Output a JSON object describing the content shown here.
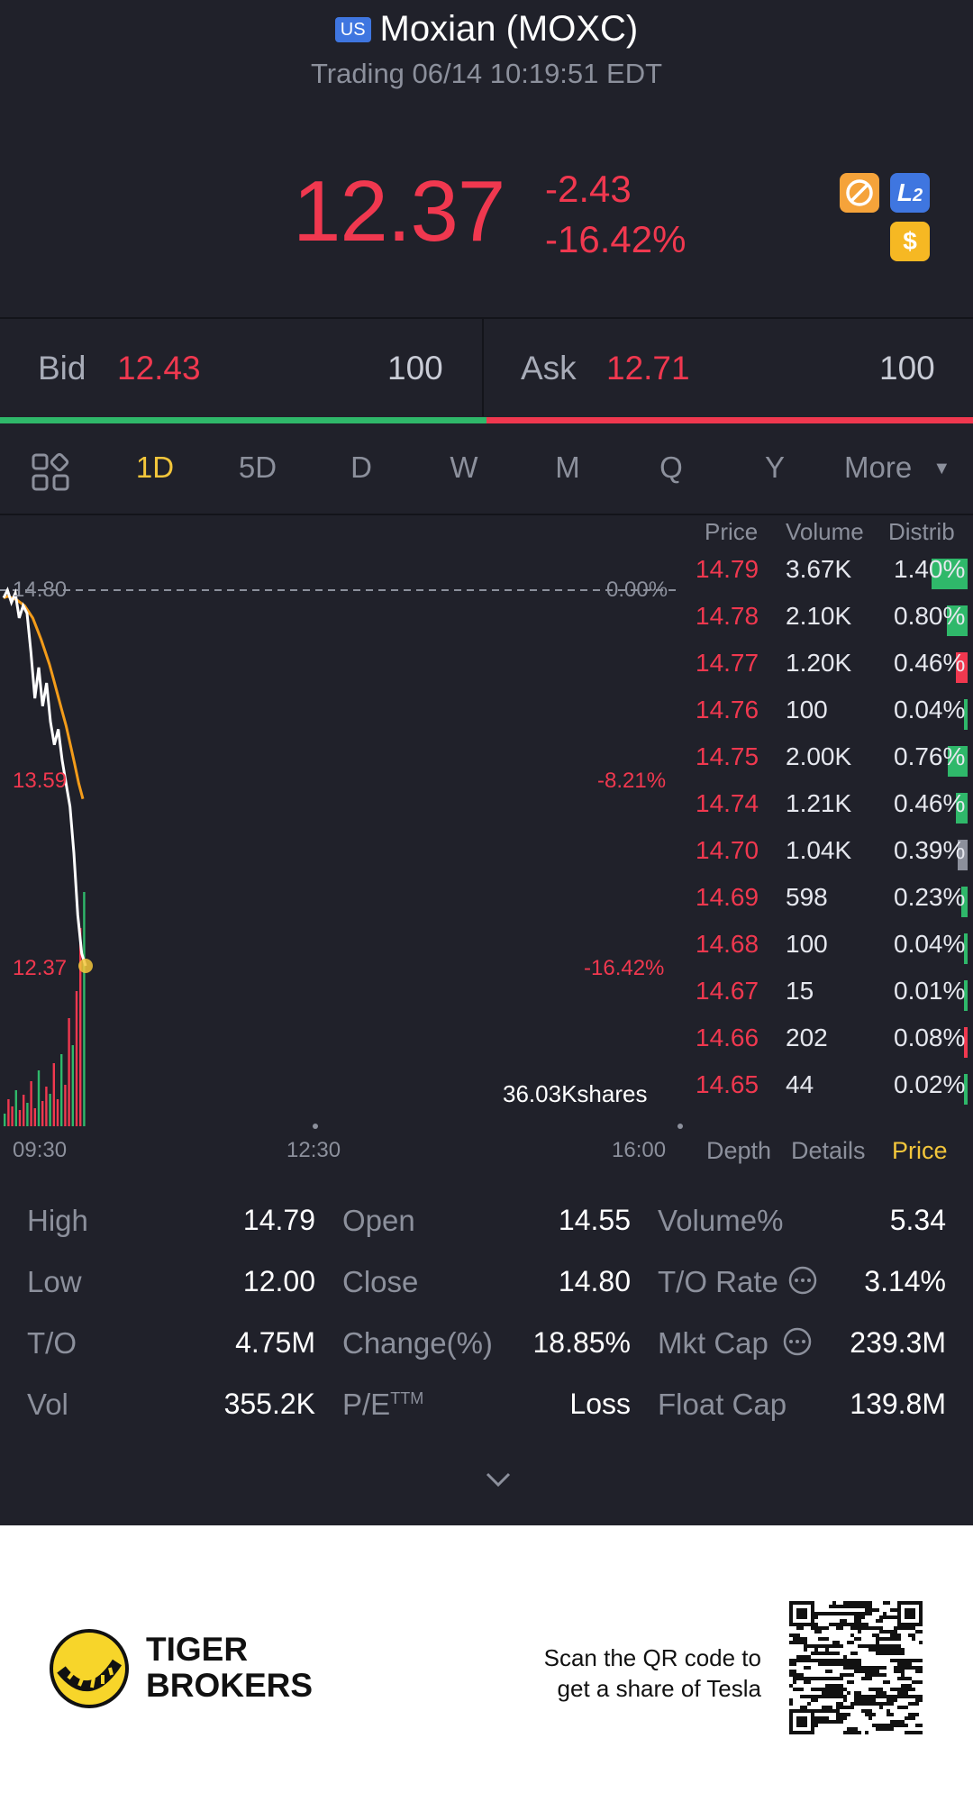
{
  "header": {
    "market_badge": "US",
    "title": "Moxian (MOXC)",
    "status": "Trading 06/14 10:19:51 EDT",
    "price": "12.37",
    "change": "-2.43",
    "change_pct": "-16.42%",
    "badges": [
      "no-short-icon",
      "L2",
      "$"
    ]
  },
  "quote": {
    "bid_label": "Bid",
    "bid": "12.43",
    "bid_size": "100",
    "ask_label": "Ask",
    "ask": "12.71",
    "ask_size": "100",
    "bid_fraction": 0.5
  },
  "tabs": [
    "1D",
    "5D",
    "D",
    "W",
    "M",
    "Q",
    "Y",
    "More"
  ],
  "active_tab": "1D",
  "chart": {
    "ref_price": "14.80",
    "ref_pct": "0.00%",
    "mid_price": "13.59",
    "mid_pct": "-8.21%",
    "last_price": "12.37",
    "last_pct": "-16.42%",
    "volume_label": "36.03Kshares",
    "times": [
      "09:30",
      "12:30",
      "16:00"
    ],
    "price_series": [
      14.75,
      14.8,
      14.72,
      14.78,
      14.62,
      14.7,
      14.65,
      14.4,
      14.1,
      14.3,
      14.05,
      14.2,
      13.95,
      13.8,
      13.9,
      13.7,
      13.55,
      13.4,
      13.1,
      12.7,
      12.45,
      12.37
    ],
    "avg_series": [
      14.75,
      14.76,
      14.75,
      14.74,
      14.72,
      14.7,
      14.66,
      14.62,
      14.55,
      14.48,
      14.4,
      14.32,
      14.22,
      14.12,
      14.02,
      13.92,
      13.8,
      13.68,
      13.55,
      13.45
    ]
  },
  "trades_table": {
    "headers": [
      "Price",
      "Volume",
      "Distrib"
    ],
    "rows": [
      {
        "price": "14.79",
        "volume": "3.67K",
        "distrib": "1.40%"
      },
      {
        "price": "14.78",
        "volume": "2.10K",
        "distrib": "0.80%"
      },
      {
        "price": "14.77",
        "volume": "1.20K",
        "distrib": "0.46%"
      },
      {
        "price": "14.76",
        "volume": "100",
        "distrib": "0.04%"
      },
      {
        "price": "14.75",
        "volume": "2.00K",
        "distrib": "0.76%"
      },
      {
        "price": "14.74",
        "volume": "1.21K",
        "distrib": "0.46%"
      },
      {
        "price": "14.70",
        "volume": "1.04K",
        "distrib": "0.39%"
      },
      {
        "price": "14.69",
        "volume": "598",
        "distrib": "0.23%"
      },
      {
        "price": "14.68",
        "volume": "100",
        "distrib": "0.04%"
      },
      {
        "price": "14.67",
        "volume": "15",
        "distrib": "0.01%"
      },
      {
        "price": "14.66",
        "volume": "202",
        "distrib": "0.08%"
      },
      {
        "price": "14.65",
        "volume": "44",
        "distrib": "0.02%"
      }
    ],
    "subtabs": [
      "Depth",
      "Details",
      "Price"
    ],
    "active_subtab": "Price"
  },
  "stats": {
    "high_label": "High",
    "high": "14.79",
    "low_label": "Low",
    "low": "12.00",
    "to_label": "T/O",
    "to": "4.75M",
    "vol_label": "Vol",
    "vol": "355.2K",
    "open_label": "Open",
    "open": "14.55",
    "close_label": "Close",
    "close": "14.80",
    "changepct_label": "Change(%)",
    "changepct": "18.85%",
    "pe_label": "P/E",
    "pe_sup": "TTM",
    "pe": "Loss",
    "volpct_label": "Volume%",
    "volpct": "5.34",
    "torate_label": "T/O Rate",
    "torate": "3.14%",
    "mktcap_label": "Mkt Cap",
    "mktcap": "239.3M",
    "floatcap_label": "Float Cap",
    "floatcap": "139.8M"
  },
  "footer": {
    "brand_line1": "TIGER",
    "brand_line2": "BROKERS",
    "promo_line1": "Scan the QR code to",
    "promo_line2": "get a share of Tesla"
  },
  "colors": {
    "up": "#2fb86a",
    "down": "#f0384f",
    "accent": "#f3c63b",
    "avg": "#f39c1a"
  }
}
